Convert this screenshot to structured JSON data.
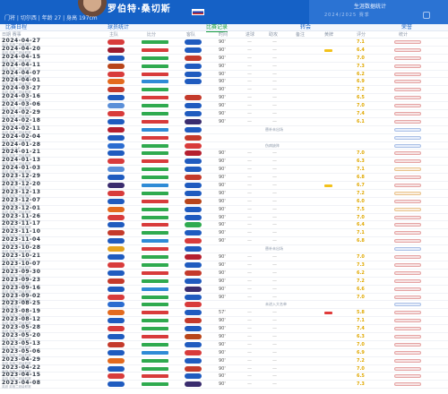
{
  "header": {
    "player_name": "罗伯特·桑切斯",
    "player_meta": "门将 | 切尔西 | 年龄 27 | 身高 197cm",
    "right_title": "生涯数据统计",
    "right_sub": "2024/2025 赛季"
  },
  "tabs": [
    {
      "label": "比赛日程"
    },
    {
      "label": "球员统计"
    },
    {
      "label": "比赛记录"
    },
    {
      "label": "转会"
    },
    {
      "label": "荣誉"
    }
  ],
  "columns": [
    {
      "label": "日期 赛事"
    },
    {
      "label": "主队"
    },
    {
      "label": "比分"
    },
    {
      "label": "客队"
    },
    {
      "label": "时间"
    },
    {
      "label": "进球"
    },
    {
      "label": "助攻"
    },
    {
      "label": "备注"
    },
    {
      "label": "黄牌"
    },
    {
      "label": "评分"
    },
    {
      "label": "统计"
    }
  ],
  "rows": [
    {
      "date": "2024-04-27",
      "comp": "英超 英格兰超级联赛",
      "home": "#d83b3b",
      "away": "#1f5bbf",
      "result": "w",
      "mins": "90'",
      "note": "",
      "chip": "",
      "rating": "7.1",
      "stat": "g"
    },
    {
      "date": "2024-04-20",
      "comp": "英超 英格兰超级联赛",
      "home": "#9b1c2e",
      "away": "#1f5bbf",
      "result": "l",
      "mins": "90'",
      "note": "",
      "chip": "card",
      "rating": "6.4",
      "stat": "g"
    },
    {
      "date": "2024-04-15",
      "comp": "英超 英格兰超级联赛",
      "home": "#1f5bbf",
      "away": "#c43a2b",
      "result": "w",
      "mins": "90'",
      "note": "",
      "chip": "",
      "rating": "7.0",
      "stat": "g"
    },
    {
      "date": "2024-04-11",
      "comp": "英超 英格兰超级联赛",
      "home": "#b8451a",
      "away": "#1f5bbf",
      "result": "w",
      "mins": "90'",
      "note": "",
      "chip": "",
      "rating": "7.3",
      "stat": "g"
    },
    {
      "date": "2024-04-07",
      "comp": "英超 英格兰超级联赛",
      "home": "#d83b3b",
      "away": "#1f5bbf",
      "result": "l",
      "mins": "90'",
      "note": "",
      "chip": "",
      "rating": "6.2",
      "stat": "g"
    },
    {
      "date": "2024-04-01",
      "comp": "英超 英格兰超级联赛",
      "home": "#e36a1e",
      "away": "#1f5bbf",
      "result": "d",
      "mins": "90'",
      "note": "",
      "chip": "",
      "rating": "6.9",
      "stat": "g"
    },
    {
      "date": "2024-03-27",
      "comp": "英超 英格兰超级联赛",
      "home": "#c43a2b",
      "away": "#ffffff",
      "result": "w",
      "mins": "90'",
      "note": "",
      "chip": "",
      "rating": "7.2",
      "stat": "g"
    },
    {
      "date": "2024-03-16",
      "comp": "英超 英格兰超级联赛",
      "home": "#1f5bbf",
      "away": "#c43a2b",
      "result": "l",
      "mins": "90'",
      "note": "",
      "chip": "",
      "rating": "6.5",
      "stat": "g"
    },
    {
      "date": "2024-03-06",
      "comp": "英超 英格兰超级联赛",
      "home": "#5a8fd8",
      "away": "#1f5bbf",
      "result": "w",
      "mins": "90'",
      "note": "",
      "chip": "",
      "rating": "7.0",
      "stat": "g"
    },
    {
      "date": "2024-02-29",
      "comp": "英超 英格兰超级联赛",
      "home": "#d83b3b",
      "away": "#1f5bbf",
      "result": "w",
      "mins": "90'",
      "note": "",
      "chip": "",
      "rating": "7.4",
      "stat": "g"
    },
    {
      "date": "2024-02-18",
      "comp": "英超 英格兰超级联赛",
      "home": "#1f5bbf",
      "away": "#3a2c6e",
      "result": "l",
      "mins": "90'",
      "note": "",
      "chip": "",
      "rating": "6.1",
      "stat": "g"
    },
    {
      "date": "2024-02-11",
      "comp": "英超 英格兰超级联赛",
      "home": "#b51f2f",
      "away": "#1f5bbf",
      "result": "d",
      "mins": "",
      "note": "替补未出场",
      "chip": "",
      "rating": "",
      "stat": "b"
    },
    {
      "date": "2024-02-04",
      "comp": "英超 英格兰超级联赛",
      "home": "#1f5bbf",
      "away": "#c43a2b",
      "result": "l",
      "mins": "",
      "note": "",
      "chip": "",
      "rating": "",
      "stat": "b"
    },
    {
      "date": "2024-01-28",
      "comp": "英格兰足总杯",
      "home": "#2b6cd0",
      "away": "#d83b3b",
      "result": "w",
      "mins": "",
      "note": "伤病缺阵",
      "chip": "",
      "rating": "",
      "stat": "b"
    },
    {
      "date": "2024-01-21",
      "comp": "英超 英格兰超级联赛",
      "home": "#1f5bbf",
      "away": "#b51f2f",
      "result": "w",
      "mins": "90'",
      "note": "",
      "chip": "",
      "rating": "7.0",
      "stat": "g"
    },
    {
      "date": "2024-01-13",
      "comp": "英超 英格兰超级联赛",
      "home": "#d83b3b",
      "away": "#1f5bbf",
      "result": "l",
      "mins": "90'",
      "note": "",
      "chip": "",
      "rating": "6.3",
      "stat": "g"
    },
    {
      "date": "2024-01-03",
      "comp": "英超 英格兰超级联赛",
      "home": "#5a8fd8",
      "away": "#1f5bbf",
      "result": "w",
      "mins": "90'",
      "note": "",
      "chip": "",
      "rating": "7.1",
      "stat": "o"
    },
    {
      "date": "2023-12-29",
      "comp": "英超 英格兰超级联赛",
      "home": "#1f5bbf",
      "away": "#c43a2b",
      "result": "w",
      "mins": "90'",
      "note": "",
      "chip": "",
      "rating": "6.8",
      "stat": "g"
    },
    {
      "date": "2023-12-20",
      "comp": "英超 英格兰超级联赛",
      "home": "#3a2c6e",
      "away": "#1f5bbf",
      "result": "d",
      "mins": "90'",
      "note": "",
      "chip": "card",
      "rating": "6.7",
      "stat": "g"
    },
    {
      "date": "2023-12-13",
      "comp": "英超 英格兰超级联赛",
      "home": "#d83b3b",
      "away": "#1f5bbf",
      "result": "w",
      "mins": "90'",
      "note": "",
      "chip": "",
      "rating": "7.2",
      "stat": "o"
    },
    {
      "date": "2023-12-07",
      "comp": "英超 英格兰超级联赛",
      "home": "#1f5bbf",
      "away": "#b8451a",
      "result": "l",
      "mins": "90'",
      "note": "",
      "chip": "",
      "rating": "6.0",
      "stat": "g"
    },
    {
      "date": "2023-12-01",
      "comp": "英超 英格兰超级联赛",
      "home": "#e36a1e",
      "away": "#1f5bbf",
      "result": "w",
      "mins": "90'",
      "note": "",
      "chip": "",
      "rating": "7.5",
      "stat": "o"
    },
    {
      "date": "2023-11-26",
      "comp": "英超 英格兰超级联赛",
      "home": "#d83b3b",
      "away": "#1f5bbf",
      "result": "w",
      "mins": "90'",
      "note": "",
      "chip": "",
      "rating": "7.0",
      "stat": "g"
    },
    {
      "date": "2023-11-17",
      "comp": "英超 英格兰超级联赛",
      "home": "#1f5bbf",
      "away": "#2faa4f",
      "result": "l",
      "mins": "90'",
      "note": "",
      "chip": "",
      "rating": "6.4",
      "stat": "g"
    },
    {
      "date": "2023-11-10",
      "comp": "英超 英格兰超级联赛",
      "home": "#c43a2b",
      "away": "#1f5bbf",
      "result": "w",
      "mins": "90'",
      "note": "",
      "chip": "",
      "rating": "7.1",
      "stat": "g"
    },
    {
      "date": "2023-11-04",
      "comp": "英超 英格兰超级联赛",
      "home": "#1f5bbf",
      "away": "#d83b3b",
      "result": "d",
      "mins": "90'",
      "note": "",
      "chip": "",
      "rating": "6.8",
      "stat": "g"
    },
    {
      "date": "2023-10-28",
      "comp": "英超 英格兰超级联赛",
      "home": "#e3a21e",
      "away": "#1f5bbf",
      "result": "l",
      "mins": "",
      "note": "替补未出场",
      "chip": "",
      "rating": "",
      "stat": "b"
    },
    {
      "date": "2023-10-21",
      "comp": "英超 英格兰超级联赛",
      "home": "#1f5bbf",
      "away": "#b51f2f",
      "result": "w",
      "mins": "90'",
      "note": "",
      "chip": "",
      "rating": "7.0",
      "stat": "g"
    },
    {
      "date": "2023-10-07",
      "comp": "英超 英格兰超级联赛",
      "home": "#d83b3b",
      "away": "#1f5bbf",
      "result": "w",
      "mins": "90'",
      "note": "",
      "chip": "",
      "rating": "7.3",
      "stat": "g"
    },
    {
      "date": "2023-09-30",
      "comp": "英超 英格兰超级联赛",
      "home": "#1f5bbf",
      "away": "#c43a2b",
      "result": "l",
      "mins": "90'",
      "note": "",
      "chip": "",
      "rating": "6.2",
      "stat": "g"
    },
    {
      "date": "2023-09-23",
      "comp": "英超 英格兰超级联赛",
      "home": "#c43a2b",
      "away": "#1f5bbf",
      "result": "w",
      "mins": "90'",
      "note": "",
      "chip": "",
      "rating": "7.2",
      "stat": "g"
    },
    {
      "date": "2023-09-16",
      "comp": "英超 英格兰超级联赛",
      "home": "#1f5bbf",
      "away": "#3a2c6e",
      "result": "d",
      "mins": "90'",
      "note": "",
      "chip": "",
      "rating": "6.6",
      "stat": "g"
    },
    {
      "date": "2023-09-02",
      "comp": "英超 英格兰超级联赛",
      "home": "#d83b3b",
      "away": "#1f5bbf",
      "result": "w",
      "mins": "90'",
      "note": "",
      "chip": "",
      "rating": "7.0",
      "stat": "g"
    },
    {
      "date": "2023-08-25",
      "comp": "英格兰联赛杯",
      "home": "#2b6cd0",
      "away": "#d83b3b",
      "result": "w",
      "mins": "",
      "note": "未进入大名单",
      "chip": "",
      "rating": "",
      "stat": "b"
    },
    {
      "date": "2023-08-19",
      "comp": "英超 英格兰超级联赛",
      "home": "#e36a1e",
      "away": "#1f5bbf",
      "result": "l",
      "mins": "57'",
      "note": "",
      "chip": "red",
      "rating": "5.8",
      "stat": "g"
    },
    {
      "date": "2023-08-12",
      "comp": "英超 英格兰超级联赛",
      "home": "#1f5bbf",
      "away": "#c43a2b",
      "result": "w",
      "mins": "90'",
      "note": "",
      "chip": "",
      "rating": "7.1",
      "stat": "g"
    },
    {
      "date": "2023-05-28",
      "comp": "英超 英格兰超级联赛",
      "home": "#d83b3b",
      "away": "#1f5bbf",
      "result": "w",
      "mins": "90'",
      "note": "",
      "chip": "",
      "rating": "7.4",
      "stat": "g"
    },
    {
      "date": "2023-05-20",
      "comp": "英超 英格兰超级联赛",
      "home": "#1f5bbf",
      "away": "#b8451a",
      "result": "l",
      "mins": "90'",
      "note": "",
      "chip": "",
      "rating": "6.3",
      "stat": "g"
    },
    {
      "date": "2023-05-13",
      "comp": "英超 英格兰超级联赛",
      "home": "#c43a2b",
      "away": "#1f5bbf",
      "result": "w",
      "mins": "90'",
      "note": "",
      "chip": "",
      "rating": "7.0",
      "stat": "g"
    },
    {
      "date": "2023-05-06",
      "comp": "英超 英格兰超级联赛",
      "home": "#1f5bbf",
      "away": "#d83b3b",
      "result": "d",
      "mins": "90'",
      "note": "",
      "chip": "",
      "rating": "6.9",
      "stat": "g"
    },
    {
      "date": "2023-04-29",
      "comp": "英超 英格兰超级联赛",
      "home": "#e36a1e",
      "away": "#1f5bbf",
      "result": "w",
      "mins": "90'",
      "note": "",
      "chip": "",
      "rating": "7.2",
      "stat": "g"
    },
    {
      "date": "2023-04-22",
      "comp": "英超 英格兰超级联赛",
      "home": "#1f5bbf",
      "away": "#c43a2b",
      "result": "w",
      "mins": "90'",
      "note": "",
      "chip": "",
      "rating": "7.0",
      "stat": "g"
    },
    {
      "date": "2023-04-15",
      "comp": "英超 英格兰超级联赛",
      "home": "#d83b3b",
      "away": "#1f5bbf",
      "result": "l",
      "mins": "90'",
      "note": "",
      "chip": "",
      "rating": "6.5",
      "stat": "g"
    },
    {
      "date": "2023-04-08",
      "comp": "英超 英格兰超级联赛",
      "home": "#1f5bbf",
      "away": "#3a2c6e",
      "result": "w",
      "mins": "90'",
      "note": "",
      "chip": "",
      "rating": "7.3",
      "stat": "g"
    }
  ]
}
